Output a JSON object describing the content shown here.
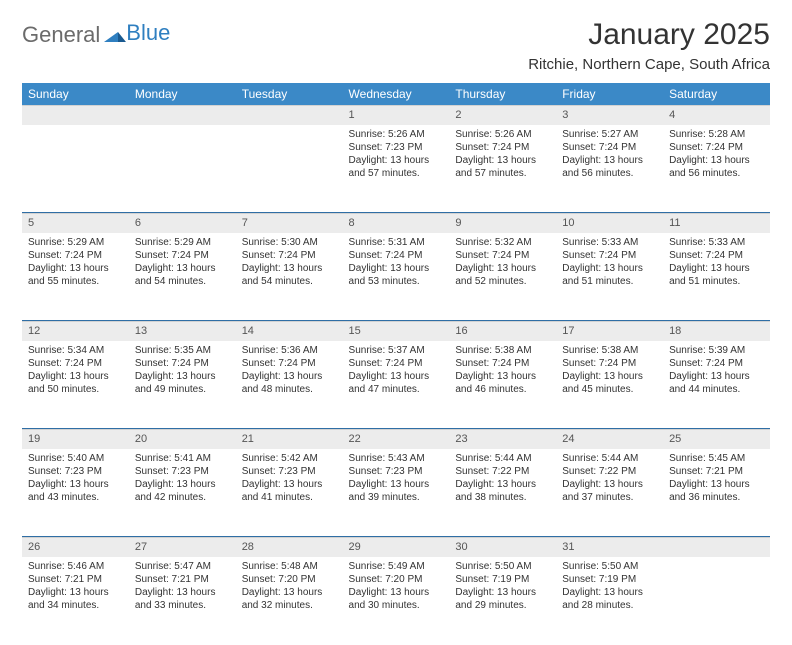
{
  "brand": {
    "part1": "General",
    "part2": "Blue"
  },
  "title": "January 2025",
  "location": "Ritchie, Northern Cape, South Africa",
  "colors": {
    "header_bg": "#3b89c7",
    "header_text": "#ffffff",
    "daynum_bg": "#ececec",
    "week_sep": "#2f6ea5",
    "text": "#333333",
    "logo_gray": "#6b6b6b",
    "logo_blue": "#2f7fc0"
  },
  "weekdays": [
    "Sunday",
    "Monday",
    "Tuesday",
    "Wednesday",
    "Thursday",
    "Friday",
    "Saturday"
  ],
  "weeks": [
    [
      null,
      null,
      null,
      {
        "n": "1",
        "sr": "5:26 AM",
        "ss": "7:23 PM",
        "dl": "13 hours and 57 minutes."
      },
      {
        "n": "2",
        "sr": "5:26 AM",
        "ss": "7:24 PM",
        "dl": "13 hours and 57 minutes."
      },
      {
        "n": "3",
        "sr": "5:27 AM",
        "ss": "7:24 PM",
        "dl": "13 hours and 56 minutes."
      },
      {
        "n": "4",
        "sr": "5:28 AM",
        "ss": "7:24 PM",
        "dl": "13 hours and 56 minutes."
      }
    ],
    [
      {
        "n": "5",
        "sr": "5:29 AM",
        "ss": "7:24 PM",
        "dl": "13 hours and 55 minutes."
      },
      {
        "n": "6",
        "sr": "5:29 AM",
        "ss": "7:24 PM",
        "dl": "13 hours and 54 minutes."
      },
      {
        "n": "7",
        "sr": "5:30 AM",
        "ss": "7:24 PM",
        "dl": "13 hours and 54 minutes."
      },
      {
        "n": "8",
        "sr": "5:31 AM",
        "ss": "7:24 PM",
        "dl": "13 hours and 53 minutes."
      },
      {
        "n": "9",
        "sr": "5:32 AM",
        "ss": "7:24 PM",
        "dl": "13 hours and 52 minutes."
      },
      {
        "n": "10",
        "sr": "5:33 AM",
        "ss": "7:24 PM",
        "dl": "13 hours and 51 minutes."
      },
      {
        "n": "11",
        "sr": "5:33 AM",
        "ss": "7:24 PM",
        "dl": "13 hours and 51 minutes."
      }
    ],
    [
      {
        "n": "12",
        "sr": "5:34 AM",
        "ss": "7:24 PM",
        "dl": "13 hours and 50 minutes."
      },
      {
        "n": "13",
        "sr": "5:35 AM",
        "ss": "7:24 PM",
        "dl": "13 hours and 49 minutes."
      },
      {
        "n": "14",
        "sr": "5:36 AM",
        "ss": "7:24 PM",
        "dl": "13 hours and 48 minutes."
      },
      {
        "n": "15",
        "sr": "5:37 AM",
        "ss": "7:24 PM",
        "dl": "13 hours and 47 minutes."
      },
      {
        "n": "16",
        "sr": "5:38 AM",
        "ss": "7:24 PM",
        "dl": "13 hours and 46 minutes."
      },
      {
        "n": "17",
        "sr": "5:38 AM",
        "ss": "7:24 PM",
        "dl": "13 hours and 45 minutes."
      },
      {
        "n": "18",
        "sr": "5:39 AM",
        "ss": "7:24 PM",
        "dl": "13 hours and 44 minutes."
      }
    ],
    [
      {
        "n": "19",
        "sr": "5:40 AM",
        "ss": "7:23 PM",
        "dl": "13 hours and 43 minutes."
      },
      {
        "n": "20",
        "sr": "5:41 AM",
        "ss": "7:23 PM",
        "dl": "13 hours and 42 minutes."
      },
      {
        "n": "21",
        "sr": "5:42 AM",
        "ss": "7:23 PM",
        "dl": "13 hours and 41 minutes."
      },
      {
        "n": "22",
        "sr": "5:43 AM",
        "ss": "7:23 PM",
        "dl": "13 hours and 39 minutes."
      },
      {
        "n": "23",
        "sr": "5:44 AM",
        "ss": "7:22 PM",
        "dl": "13 hours and 38 minutes."
      },
      {
        "n": "24",
        "sr": "5:44 AM",
        "ss": "7:22 PM",
        "dl": "13 hours and 37 minutes."
      },
      {
        "n": "25",
        "sr": "5:45 AM",
        "ss": "7:21 PM",
        "dl": "13 hours and 36 minutes."
      }
    ],
    [
      {
        "n": "26",
        "sr": "5:46 AM",
        "ss": "7:21 PM",
        "dl": "13 hours and 34 minutes."
      },
      {
        "n": "27",
        "sr": "5:47 AM",
        "ss": "7:21 PM",
        "dl": "13 hours and 33 minutes."
      },
      {
        "n": "28",
        "sr": "5:48 AM",
        "ss": "7:20 PM",
        "dl": "13 hours and 32 minutes."
      },
      {
        "n": "29",
        "sr": "5:49 AM",
        "ss": "7:20 PM",
        "dl": "13 hours and 30 minutes."
      },
      {
        "n": "30",
        "sr": "5:50 AM",
        "ss": "7:19 PM",
        "dl": "13 hours and 29 minutes."
      },
      {
        "n": "31",
        "sr": "5:50 AM",
        "ss": "7:19 PM",
        "dl": "13 hours and 28 minutes."
      },
      null
    ]
  ],
  "labels": {
    "sunrise": "Sunrise:",
    "sunset": "Sunset:",
    "daylight": "Daylight:"
  }
}
